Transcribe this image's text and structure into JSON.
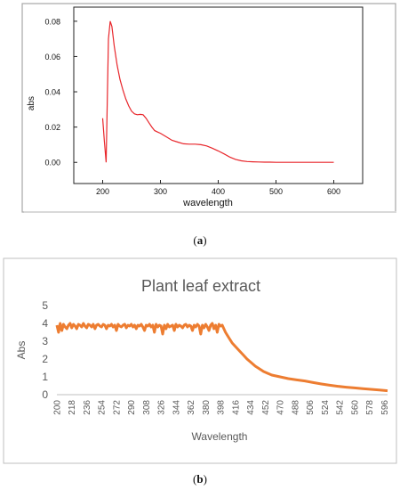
{
  "captions": {
    "a": {
      "open": "(",
      "letter": "a",
      "close": ")"
    },
    "b": {
      "open": "(",
      "letter": "b",
      "close": ")"
    }
  },
  "chart_data": [
    {
      "type": "line",
      "title": "",
      "xlabel": "wavelength",
      "ylabel": "abs",
      "xlim": [
        150,
        650
      ],
      "ylim": [
        -0.012,
        0.088
      ],
      "xticks": [
        200,
        300,
        400,
        500,
        600
      ],
      "yticks": [
        0.0,
        0.02,
        0.04,
        0.06,
        0.08
      ],
      "ytick_labels": [
        "0.00",
        "0.02",
        "0.04",
        "0.06",
        "0.08"
      ],
      "grid": false,
      "line_color": "#e8262b",
      "series": [
        {
          "x": [
            200,
            203,
            206,
            208,
            210,
            213,
            216,
            220,
            225,
            230,
            235,
            240,
            245,
            250,
            255,
            260,
            265,
            270,
            275,
            280,
            285,
            290,
            295,
            300,
            310,
            320,
            330,
            340,
            350,
            360,
            370,
            380,
            390,
            400,
            410,
            420,
            430,
            440,
            450,
            460,
            470,
            480,
            490,
            500,
            520,
            540,
            560,
            580,
            600
          ],
          "y": [
            0.025,
            0.012,
            0.0,
            0.035,
            0.07,
            0.08,
            0.077,
            0.066,
            0.055,
            0.047,
            0.041,
            0.036,
            0.032,
            0.029,
            0.0275,
            0.027,
            0.0272,
            0.027,
            0.025,
            0.0225,
            0.02,
            0.018,
            0.0172,
            0.0165,
            0.0145,
            0.0125,
            0.0115,
            0.0105,
            0.0103,
            0.0103,
            0.01,
            0.0093,
            0.008,
            0.0065,
            0.0048,
            0.003,
            0.0017,
            0.0009,
            0.0005,
            0.0003,
            0.0002,
            0.0001,
            0.0001,
            0.0,
            0.0,
            0.0,
            0.0,
            0.0,
            0.0
          ]
        }
      ]
    },
    {
      "type": "line",
      "title": "Plant leaf extract",
      "xlabel": "Wavelength",
      "ylabel": "Abs",
      "xlim": [
        200,
        600
      ],
      "ylim": [
        0,
        5
      ],
      "yticks": [
        0,
        1,
        2,
        3,
        4,
        5
      ],
      "xtick_labels": [
        "200",
        "218",
        "236",
        "254",
        "272",
        "290",
        "308",
        "326",
        "344",
        "362",
        "380",
        "398",
        "416",
        "434",
        "452",
        "470",
        "488",
        "506",
        "524",
        "542",
        "560",
        "578",
        "596"
      ],
      "grid": false,
      "line_color": "#ed7d31",
      "series": [
        {
          "x": [
            200,
            202,
            204,
            206,
            208,
            210,
            212,
            214,
            216,
            218,
            220,
            222,
            224,
            226,
            228,
            230,
            232,
            234,
            236,
            238,
            240,
            242,
            244,
            246,
            248,
            250,
            252,
            254,
            256,
            258,
            260,
            262,
            264,
            266,
            268,
            270,
            272,
            274,
            276,
            278,
            280,
            282,
            284,
            286,
            288,
            290,
            292,
            294,
            296,
            298,
            300,
            302,
            304,
            306,
            308,
            310,
            312,
            314,
            316,
            318,
            320,
            322,
            324,
            326,
            328,
            330,
            332,
            334,
            336,
            338,
            340,
            342,
            344,
            346,
            348,
            350,
            352,
            354,
            356,
            358,
            360,
            362,
            364,
            366,
            368,
            370,
            372,
            374,
            376,
            378,
            380,
            382,
            384,
            386,
            388,
            390,
            392,
            394,
            396,
            398,
            400,
            404,
            408,
            412,
            416,
            420,
            425,
            430,
            435,
            440,
            445,
            450,
            455,
            460,
            470,
            480,
            490,
            500,
            510,
            520,
            530,
            540,
            550,
            560,
            570,
            580,
            590,
            596,
            600
          ],
          "y": [
            3.9,
            3.5,
            4.0,
            3.6,
            3.95,
            3.8,
            3.7,
            3.9,
            4.0,
            3.75,
            3.95,
            3.85,
            3.7,
            3.95,
            3.9,
            3.8,
            4.0,
            3.85,
            3.75,
            3.95,
            3.9,
            3.8,
            3.95,
            3.7,
            3.9,
            3.95,
            3.85,
            3.8,
            3.95,
            3.9,
            3.7,
            3.9,
            3.85,
            3.95,
            3.8,
            3.9,
            3.6,
            3.95,
            3.85,
            3.8,
            3.9,
            3.95,
            3.75,
            3.9,
            3.85,
            3.95,
            3.8,
            3.9,
            3.7,
            3.9,
            3.85,
            3.95,
            3.8,
            3.6,
            3.9,
            3.85,
            3.95,
            3.8,
            3.9,
            3.5,
            3.95,
            3.8,
            3.9,
            3.85,
            3.4,
            3.9,
            3.7,
            3.95,
            3.8,
            3.85,
            3.9,
            3.6,
            3.95,
            3.8,
            3.9,
            3.85,
            3.75,
            3.9,
            3.95,
            3.8,
            3.9,
            3.85,
            3.6,
            3.9,
            3.8,
            3.95,
            3.85,
            3.4,
            3.9,
            3.75,
            3.95,
            3.8,
            3.6,
            3.9,
            4.0,
            3.7,
            3.9,
            3.5,
            3.95,
            3.85,
            3.9,
            3.5,
            3.2,
            2.9,
            2.7,
            2.5,
            2.25,
            2.0,
            1.8,
            1.6,
            1.45,
            1.3,
            1.2,
            1.1,
            1.0,
            0.9,
            0.83,
            0.77,
            0.68,
            0.6,
            0.53,
            0.47,
            0.42,
            0.38,
            0.34,
            0.3,
            0.26,
            0.24,
            0.22
          ]
        }
      ]
    }
  ]
}
